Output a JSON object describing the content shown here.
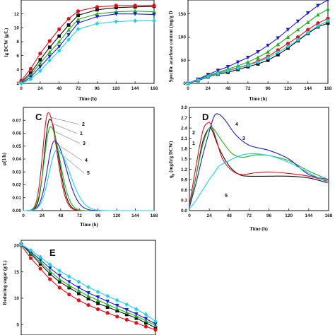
{
  "colors": {
    "s1": "#111111",
    "s2": "#e0101a",
    "s3": "#22b022",
    "s4": "#1e1ec8",
    "s5": "#25d0e0"
  },
  "chart_data": [
    {
      "id": "A",
      "type": "line",
      "title": "",
      "xlabel": "Time (h)",
      "ylabel": "lg DCW (g/L)",
      "xlim": [
        0,
        168
      ],
      "ylim": [
        2,
        14
      ],
      "xticks": [
        0,
        24,
        48,
        72,
        96,
        120,
        144,
        168
      ],
      "yticks": [
        2,
        4,
        6,
        8,
        10,
        12
      ],
      "markers": true,
      "series": [
        {
          "x": [
            0,
            12,
            24,
            36,
            48,
            60,
            72,
            96,
            120,
            144,
            168
          ],
          "y": [
            2.2,
            3.5,
            5.4,
            7.2,
            8.8,
            10.4,
            11.8,
            12.6,
            12.9,
            13.0,
            13.1
          ]
        },
        {
          "x": [
            0,
            12,
            24,
            36,
            48,
            60,
            72,
            96,
            120,
            144,
            168
          ],
          "y": [
            2.4,
            4.1,
            6.3,
            8.1,
            9.8,
            11.3,
            12.4,
            13.0,
            13.2,
            13.2,
            13.2
          ]
        },
        {
          "x": [
            0,
            12,
            24,
            36,
            48,
            60,
            72,
            96,
            120,
            144,
            168
          ],
          "y": [
            2.1,
            3.2,
            4.9,
            6.5,
            8.0,
            9.7,
            11.2,
            12.0,
            12.3,
            12.4,
            12.3
          ]
        },
        {
          "x": [
            0,
            12,
            24,
            36,
            48,
            60,
            72,
            96,
            120,
            144,
            168
          ],
          "y": [
            2.0,
            2.9,
            4.4,
            5.9,
            7.3,
            9.0,
            10.7,
            11.6,
            12.0,
            12.0,
            11.9
          ]
        },
        {
          "x": [
            0,
            12,
            24,
            36,
            48,
            60,
            72,
            96,
            120,
            144,
            168
          ],
          "y": [
            2.0,
            2.6,
            3.8,
            5.3,
            6.7,
            8.3,
            9.8,
            10.6,
            10.9,
            11.0,
            11.0
          ]
        }
      ]
    },
    {
      "id": "B",
      "type": "line",
      "title": "",
      "xlabel": "Time (h)",
      "ylabel": "Specific acarbose content (mg/g DCW)",
      "xlim": [
        0,
        168
      ],
      "ylim": [
        0,
        180
      ],
      "xticks": [
        0,
        24,
        48,
        72,
        96,
        120,
        144,
        168
      ],
      "yticks": [
        0,
        50,
        100,
        150
      ],
      "markers": true,
      "series": [
        {
          "x": [
            0,
            12,
            24,
            36,
            48,
            60,
            72,
            84,
            96,
            108,
            120,
            132,
            144,
            156,
            168
          ],
          "y": [
            0,
            6,
            14,
            20,
            24,
            30,
            36,
            42,
            50,
            62,
            76,
            92,
            108,
            122,
            130
          ]
        },
        {
          "x": [
            0,
            12,
            24,
            36,
            48,
            60,
            72,
            84,
            96,
            108,
            120,
            132,
            144,
            156,
            168
          ],
          "y": [
            0,
            7,
            16,
            22,
            28,
            34,
            40,
            48,
            58,
            72,
            86,
            100,
            116,
            130,
            140
          ]
        },
        {
          "x": [
            0,
            12,
            24,
            36,
            48,
            60,
            72,
            84,
            96,
            108,
            120,
            132,
            144,
            156,
            168
          ],
          "y": [
            0,
            8,
            17,
            24,
            31,
            38,
            46,
            56,
            68,
            84,
            100,
            116,
            132,
            148,
            160
          ]
        },
        {
          "x": [
            0,
            12,
            24,
            36,
            48,
            60,
            72,
            84,
            96,
            108,
            120,
            132,
            144,
            156,
            168
          ],
          "y": [
            0,
            9,
            19,
            28,
            36,
            46,
            56,
            68,
            82,
            98,
            116,
            134,
            152,
            168,
            180
          ]
        },
        {
          "x": [
            0,
            12,
            24,
            36,
            48,
            60,
            72,
            84,
            96,
            108,
            120,
            132,
            144,
            156,
            168
          ],
          "y": [
            0,
            7,
            15,
            21,
            27,
            33,
            39,
            46,
            55,
            67,
            80,
            94,
            110,
            124,
            135
          ]
        }
      ]
    },
    {
      "id": "C",
      "type": "line",
      "title": "",
      "xlabel": "Time (h)",
      "ylabel": "μ(1/h)",
      "xlim": [
        0,
        168
      ],
      "ylim": [
        0,
        0.08
      ],
      "xticks": [
        0,
        24,
        48,
        72,
        96,
        120,
        144,
        168
      ],
      "yticks": [
        0.0,
        0.01,
        0.02,
        0.03,
        0.04,
        0.05,
        0.06,
        0.07
      ],
      "yticklabels": [
        "0.00",
        "0.01",
        "0.02",
        "0.03",
        "0.04",
        "0.05",
        "0.06",
        "0.07"
      ],
      "markers": false,
      "series_peaks": [
        {
          "label": "1",
          "center": 34,
          "amplitude": 0.071,
          "width_left": 7,
          "width_right": 11
        },
        {
          "label": "2",
          "center": 32,
          "amplitude": 0.076,
          "width_left": 7,
          "width_right": 11
        },
        {
          "label": "3",
          "center": 35,
          "amplitude": 0.065,
          "width_left": 8,
          "width_right": 12
        },
        {
          "label": "4",
          "center": 40,
          "amplitude": 0.054,
          "width_left": 9,
          "width_right": 15
        },
        {
          "label": "5",
          "center": 43,
          "amplitude": 0.047,
          "width_left": 10,
          "width_right": 17
        }
      ]
    },
    {
      "id": "D",
      "type": "line",
      "title": "",
      "xlabel": "Time (h)",
      "ylabel": "qp (mg/h/g DCW)",
      "xlim": [
        0,
        168
      ],
      "ylim": [
        0,
        3.0
      ],
      "xticks": [
        0,
        24,
        48,
        72,
        96,
        120,
        144,
        168
      ],
      "yticks": [
        0.0,
        0.3,
        0.6,
        0.9,
        1.2,
        1.5,
        1.8,
        2.1,
        2.4,
        2.7,
        3.0
      ],
      "yticklabels": [
        "0.0",
        "0.3",
        "0.6",
        "0.9",
        "1.2",
        "1.5",
        "1.8",
        "2.1",
        "2.4",
        "2.7",
        "3.0"
      ],
      "markers": false,
      "series": [
        {
          "x": [
            0,
            8,
            16,
            24,
            28,
            36,
            48,
            60,
            72,
            96,
            120,
            144,
            168
          ],
          "y": [
            0.1,
            1.0,
            2.0,
            2.4,
            2.3,
            1.8,
            1.3,
            1.05,
            1.0,
            1.0,
            1.0,
            0.95,
            0.8
          ]
        },
        {
          "x": [
            0,
            8,
            16,
            22,
            26,
            32,
            40,
            52,
            64,
            80,
            96,
            120,
            144,
            168
          ],
          "y": [
            0.15,
            1.3,
            2.3,
            2.55,
            2.5,
            2.1,
            1.5,
            1.15,
            1.05,
            1.1,
            1.12,
            1.08,
            1.0,
            0.85
          ]
        },
        {
          "x": [
            0,
            8,
            16,
            24,
            30,
            40,
            52,
            64,
            80,
            96,
            120,
            144,
            168
          ],
          "y": [
            0.1,
            1.0,
            1.9,
            2.4,
            2.35,
            2.0,
            1.65,
            1.55,
            1.62,
            1.6,
            1.45,
            1.15,
            0.9
          ]
        },
        {
          "x": [
            0,
            8,
            16,
            24,
            30,
            36,
            44,
            56,
            72,
            96,
            120,
            144,
            168
          ],
          "y": [
            0.1,
            0.8,
            1.6,
            2.3,
            2.75,
            2.8,
            2.6,
            2.2,
            1.9,
            1.75,
            1.5,
            1.05,
            0.9
          ]
        },
        {
          "x": [
            0,
            8,
            16,
            24,
            30,
            36,
            44,
            56,
            72,
            96,
            120,
            144,
            168
          ],
          "y": [
            0.05,
            0.3,
            0.6,
            0.9,
            1.1,
            1.3,
            1.4,
            1.55,
            1.65,
            1.6,
            1.4,
            1.1,
            0.8
          ]
        }
      ],
      "labels": [
        "1",
        "2",
        "3",
        "4",
        "5"
      ]
    },
    {
      "id": "E",
      "type": "line",
      "title": "",
      "xlabel": "",
      "ylabel": "Reducing sugar (g/L)",
      "xlim": [
        0,
        168
      ],
      "ylim": [
        3,
        21
      ],
      "yticks": [
        5,
        10,
        15,
        20
      ],
      "markers": true,
      "series": [
        {
          "x": [
            0,
            12,
            24,
            36,
            48,
            60,
            72,
            84,
            96,
            108,
            120,
            132,
            144,
            156,
            168
          ],
          "y": [
            20.2,
            18.4,
            16.5,
            14.6,
            13.1,
            12.0,
            10.9,
            9.9,
            9.0,
            8.3,
            7.6,
            6.9,
            6.2,
            5.3,
            4.4
          ]
        },
        {
          "x": [
            0,
            12,
            24,
            36,
            48,
            60,
            72,
            84,
            96,
            108,
            120,
            132,
            144,
            156,
            168
          ],
          "y": [
            20.0,
            17.6,
            15.6,
            13.6,
            12.0,
            10.7,
            9.6,
            8.7,
            7.9,
            7.2,
            6.5,
            5.9,
            5.3,
            4.6,
            4.0
          ]
        },
        {
          "x": [
            0,
            12,
            24,
            36,
            48,
            60,
            72,
            84,
            96,
            108,
            120,
            132,
            144,
            156,
            168
          ],
          "y": [
            20.2,
            18.6,
            16.9,
            15.1,
            13.6,
            12.4,
            11.4,
            10.4,
            9.6,
            8.8,
            8.0,
            7.3,
            6.6,
            5.7,
            4.8
          ]
        },
        {
          "x": [
            0,
            12,
            24,
            36,
            48,
            60,
            72,
            84,
            96,
            108,
            120,
            132,
            144,
            156,
            168
          ],
          "y": [
            20.2,
            18.8,
            17.3,
            15.7,
            14.3,
            13.1,
            12.0,
            11.0,
            10.2,
            9.4,
            8.6,
            7.8,
            7.0,
            6.1,
            5.1
          ]
        },
        {
          "x": [
            0,
            12,
            24,
            36,
            48,
            60,
            72,
            84,
            96,
            108,
            120,
            132,
            144,
            156,
            168
          ],
          "y": [
            20.2,
            19.1,
            17.8,
            16.4,
            15.2,
            14.1,
            13.1,
            12.1,
            11.2,
            10.4,
            9.6,
            8.8,
            7.9,
            6.9,
            5.6
          ]
        }
      ]
    }
  ],
  "text": {
    "A": {
      "ylabel": "lg DCW (g/L)",
      "xlabel": "Time (h)"
    },
    "B": {
      "ylabel": "Specific acarbose content (mg/g D",
      "xlabel": "Time (h)"
    },
    "C": {
      "letter": "C",
      "ylabel": "μ(1/h)",
      "xlabel": "Time (h)"
    },
    "D": {
      "letter": "D",
      "ylabel": "q",
      "ylabel_sub": "p",
      "ylabel_rest": " (mg/h/g DCW)",
      "xlabel": "Time (h)"
    },
    "E": {
      "letter": "E",
      "ylabel": "Reducing sugar (g/L)"
    }
  }
}
